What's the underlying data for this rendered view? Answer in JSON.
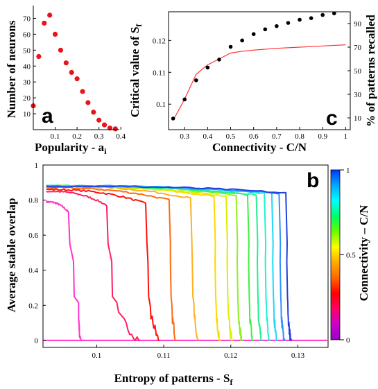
{
  "chart_data": [
    {
      "panel": "a",
      "type": "scatter",
      "panel_label": "a",
      "xlabel": "Popularity - a",
      "xlabel_sub": "i",
      "ylabel": "Number of neurons",
      "xlim": [
        0,
        0.45
      ],
      "ylim": [
        0,
        75
      ],
      "xticks": [
        0.1,
        0.2,
        0.3,
        0.4
      ],
      "xtick_labels": [
        "0.1",
        "0.2",
        "0.3",
        "0.4"
      ],
      "yticks": [
        10,
        20,
        30,
        40,
        50,
        60,
        70
      ],
      "ytick_labels": [
        "10",
        "20",
        "30",
        "40",
        "50",
        "60",
        "70"
      ],
      "marker_color": "#e8141b",
      "series": [
        {
          "x": [
            0.0,
            0.025,
            0.05,
            0.075,
            0.1,
            0.125,
            0.15,
            0.175,
            0.2,
            0.225,
            0.25,
            0.275,
            0.3,
            0.325,
            0.35,
            0.375
          ],
          "y": [
            15,
            46,
            67,
            72,
            60,
            50,
            42,
            36,
            32,
            24,
            17,
            11,
            6,
            3,
            1,
            0.5
          ]
        }
      ]
    },
    {
      "panel": "c",
      "type": "line",
      "panel_label": "c",
      "xlabel": "Connectivity - C/N",
      "ylabel_left": "Critical value of S",
      "ylabel_left_sub": "f",
      "ylabel_right": "% of patterns recalled",
      "xlim": [
        0.23,
        1.02
      ],
      "ylim_left": [
        0.092,
        0.129
      ],
      "ylim_right": [
        0,
        100
      ],
      "xticks": [
        0.3,
        0.4,
        0.5,
        0.6,
        0.7,
        0.8,
        0.9,
        1
      ],
      "xtick_labels": [
        "0.3",
        "0.4",
        "0.5",
        "0.6",
        "0.7",
        "0.8",
        "0.9",
        "1"
      ],
      "yticks_left": [
        0.1,
        0.11,
        0.12
      ],
      "ytick_labels_left": [
        "0.1",
        "0.11",
        "0.12"
      ],
      "yticks_right": [
        10,
        30,
        50,
        70,
        90
      ],
      "ytick_labels_right": [
        "10",
        "30",
        "50",
        "70",
        "90"
      ],
      "dots": {
        "x": [
          0.25,
          0.3,
          0.35,
          0.4,
          0.45,
          0.5,
          0.55,
          0.6,
          0.65,
          0.7,
          0.75,
          0.8,
          0.85,
          0.9,
          0.95,
          1.0
        ],
        "y": [
          0.0955,
          0.1015,
          0.1075,
          0.1115,
          0.114,
          0.118,
          0.12,
          0.122,
          0.1235,
          0.1245,
          0.1255,
          0.1265,
          0.127,
          0.128,
          0.1285,
          0.1295
        ]
      },
      "line": {
        "color": "#ff3333",
        "x": [
          0.25,
          0.3,
          0.35,
          0.4,
          0.45,
          0.5,
          0.55,
          0.6,
          0.7,
          0.8,
          0.9,
          1.0
        ],
        "y_percent": [
          8,
          26,
          47,
          55,
          60,
          65,
          66.5,
          67.5,
          69,
          70,
          71,
          72
        ]
      }
    },
    {
      "panel": "b",
      "type": "line",
      "panel_label": "b",
      "xlabel": "Entropy of patterns - S",
      "xlabel_sub": "f",
      "ylabel": "Average stable overlap",
      "colorbar_label": "Connectivity – C/N",
      "xlim": [
        0.092,
        0.1345
      ],
      "ylim": [
        -0.04,
        1.0
      ],
      "xticks": [
        0.1,
        0.11,
        0.12,
        0.13
      ],
      "xtick_labels": [
        "0.1",
        "0.11",
        "0.12",
        "0.13"
      ],
      "yticks": [
        0,
        0.2,
        0.4,
        0.6,
        0.8,
        1
      ],
      "ytick_labels": [
        "0",
        "0.2",
        "0.4",
        "0.6",
        "0.8",
        "1"
      ],
      "colorbar_ticks": [
        0,
        0.5,
        1
      ],
      "colorbar_tick_labels": [
        "0",
        "0.5",
        "1"
      ],
      "colorbar_colors": [
        "#9900cc",
        "#cc00cc",
        "#ff0066",
        "#ff0000",
        "#ff6600",
        "#ffaa00",
        "#ffff00",
        "#66ff00",
        "#00ff66",
        "#00ffff",
        "#00aaff",
        "#0033ff"
      ],
      "series": [
        {
          "connectivity": 0.1,
          "color": "#ff33cc",
          "start": 0.79,
          "end_slope": 0.06,
          "drop_x": 0.0958,
          "low_start": 0.0973,
          "tail_x": 0.0975
        },
        {
          "connectivity": 0.25,
          "color": "#ff2060",
          "start": 0.85,
          "end_slope": 0.08,
          "drop_x": 0.1015,
          "low_start": 0.103,
          "tail_x": 0.1063
        },
        {
          "connectivity": 0.3,
          "color": "#ff1010",
          "start": 0.86,
          "end_slope": 0.08,
          "drop_x": 0.1073,
          "low_start": 0.108,
          "tail_x": 0.1092
        },
        {
          "connectivity": 0.35,
          "color": "#ff6a10",
          "start": 0.87,
          "end_slope": 0.07,
          "drop_x": 0.1108,
          "low_start": 0.1112,
          "tail_x": 0.1118
        },
        {
          "connectivity": 0.4,
          "color": "#ffb020",
          "start": 0.88,
          "end_slope": 0.07,
          "drop_x": 0.114,
          "low_start": 0.1145,
          "tail_x": 0.115
        },
        {
          "connectivity": 0.45,
          "color": "#ffd800",
          "start": 0.88,
          "end_slope": 0.06,
          "drop_x": 0.1175,
          "low_start": 0.1178,
          "tail_x": 0.1183
        },
        {
          "connectivity": 0.5,
          "color": "#d8f000",
          "start": 0.88,
          "end_slope": 0.06,
          "drop_x": 0.1193,
          "low_start": 0.1196,
          "tail_x": 0.1201
        },
        {
          "connectivity": 0.55,
          "color": "#90f020",
          "start": 0.88,
          "end_slope": 0.05,
          "drop_x": 0.1208,
          "low_start": 0.1211,
          "tail_x": 0.1216
        },
        {
          "connectivity": 0.6,
          "color": "#40f040",
          "start": 0.88,
          "end_slope": 0.05,
          "drop_x": 0.1225,
          "low_start": 0.1228,
          "tail_x": 0.1232
        },
        {
          "connectivity": 0.65,
          "color": "#20f090",
          "start": 0.88,
          "end_slope": 0.05,
          "drop_x": 0.1238,
          "low_start": 0.1241,
          "tail_x": 0.1245
        },
        {
          "connectivity": 0.7,
          "color": "#20f0d0",
          "start": 0.88,
          "end_slope": 0.04,
          "drop_x": 0.125,
          "low_start": 0.1253,
          "tail_x": 0.1257
        },
        {
          "connectivity": 0.8,
          "color": "#20d8f8",
          "start": 0.88,
          "end_slope": 0.04,
          "drop_x": 0.1261,
          "low_start": 0.1264,
          "tail_x": 0.1268
        },
        {
          "connectivity": 0.9,
          "color": "#3090ff",
          "start": 0.88,
          "end_slope": 0.04,
          "drop_x": 0.1272,
          "low_start": 0.1275,
          "tail_x": 0.1279
        },
        {
          "connectivity": 1.0,
          "color": "#2040e0",
          "start": 0.88,
          "end_slope": 0.04,
          "drop_x": 0.1282,
          "low_start": 0.1285,
          "tail_x": 0.1289
        }
      ],
      "baseline_color": "#ff33cc"
    }
  ]
}
